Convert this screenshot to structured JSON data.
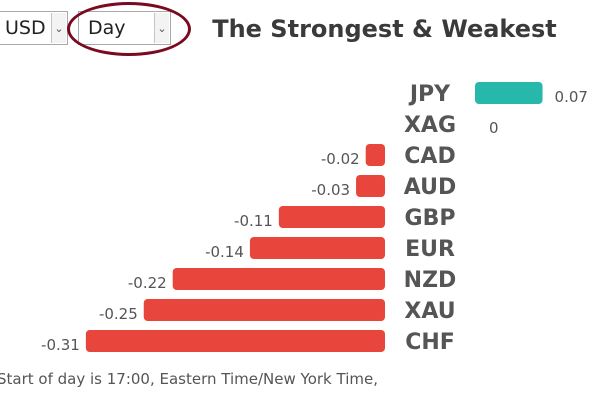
{
  "controls": {
    "currency": "USD",
    "period": "Day"
  },
  "title": "The Strongest & Weakest",
  "footnote": "Start of day is 17:00, Eastern Time/New York Time,",
  "colors": {
    "positive": "#26b8ab",
    "negative": "#e8453c",
    "label": "#555555",
    "value": "#555555",
    "highlight": "#7a0a22"
  },
  "chart_data": {
    "type": "bar",
    "orientation": "horizontal",
    "title": "The Strongest & Weakest",
    "categories": [
      "JPY",
      "XAG",
      "CAD",
      "AUD",
      "GBP",
      "EUR",
      "NZD",
      "XAU",
      "CHF"
    ],
    "values": [
      0.07,
      0,
      -0.02,
      -0.03,
      -0.11,
      -0.14,
      -0.22,
      -0.25,
      -0.31
    ],
    "value_labels": [
      "0.07",
      "0",
      "-0.02",
      "-0.03",
      "-0.11",
      "-0.14",
      "-0.22",
      "-0.25",
      "-0.31"
    ],
    "grid": false,
    "legend": "none"
  }
}
